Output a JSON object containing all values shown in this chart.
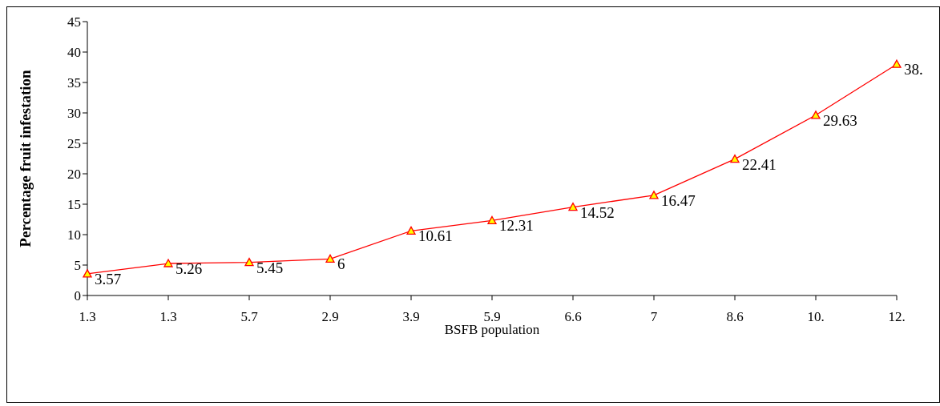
{
  "chart_data": {
    "type": "line",
    "xlabel": "BSFB population",
    "ylabel": "Percentage fruit infestation",
    "categories": [
      "1.3",
      "1.3",
      "5.7",
      "2.9",
      "3.9",
      "5.9",
      "6.6",
      "7",
      "8.6",
      "10.",
      "12."
    ],
    "series": [
      {
        "color": "#ff0000",
        "values": [
          3.57,
          5.26,
          5.45,
          6,
          10.61,
          12.31,
          14.52,
          16.47,
          22.41,
          29.63,
          38
        ],
        "value_labels": [
          "3.57",
          "5.26",
          "5.45",
          "6",
          "10.61",
          "12.31",
          "14.52",
          "16.47",
          "22.41",
          "29.63",
          "38."
        ]
      }
    ],
    "ylim": [
      0,
      45
    ],
    "yticks": [
      0,
      5,
      10,
      15,
      20,
      25,
      30,
      35,
      40,
      45
    ],
    "grid": false,
    "legend": false,
    "marker": "triangle",
    "line_style": "solid"
  }
}
